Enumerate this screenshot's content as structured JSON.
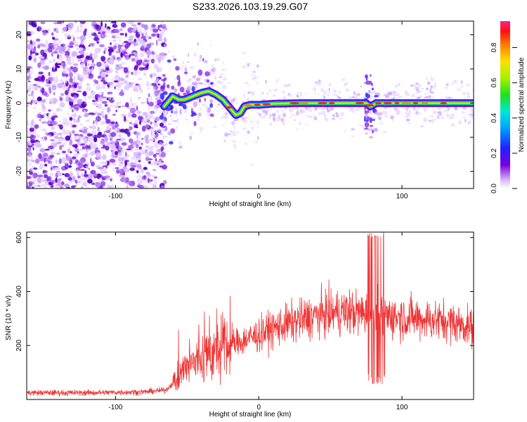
{
  "title": "S233.2026.103.19.29.G07",
  "chart_data": [
    {
      "type": "heatmap",
      "name": "spectrogram",
      "xlabel": "Height of straight line (km)",
      "ylabel": "Frequency (Hz)",
      "xlim": [
        -162,
        150
      ],
      "ylim": [
        -25,
        24
      ],
      "xticks": [
        -100,
        0,
        100
      ],
      "xtick_labels": [
        "-100",
        "0",
        "100"
      ],
      "yticks": [
        -20,
        -10,
        0,
        10,
        20
      ],
      "ytick_labels": [
        "-20",
        "-10",
        "0",
        "10",
        "20"
      ],
      "noise_region_x": [
        -162,
        -65
      ],
      "signal_track": {
        "x": [
          -66,
          -60,
          -56,
          -52,
          -46,
          -40,
          -35,
          -30,
          -25,
          -20,
          -16,
          -13,
          -10,
          -6,
          0,
          10,
          30,
          60,
          75,
          78,
          82,
          90,
          110,
          130,
          150
        ],
        "freq": [
          -1,
          2,
          1,
          1,
          2,
          3,
          3.5,
          2.5,
          1,
          -1.5,
          -3.5,
          -3,
          -1,
          -0.5,
          -0.5,
          -0.2,
          0,
          0,
          0,
          -1,
          0,
          0,
          0,
          0,
          0
        ]
      },
      "colorbar": {
        "label": "Normalized spectral amplitude",
        "range": [
          0,
          0.95
        ],
        "ticks": [
          0.0,
          0.2,
          0.4,
          0.6,
          0.8
        ],
        "tick_labels": [
          "0.0",
          "0.2",
          "0.4",
          "0.6",
          "0.8"
        ]
      }
    },
    {
      "type": "line",
      "name": "snr",
      "xlabel": "Height of straight line (km)",
      "ylabel": "SNR (10 * v/v)",
      "xlim": [
        -162,
        150
      ],
      "ylim": [
        0,
        620
      ],
      "xticks": [
        -100,
        0,
        100
      ],
      "xtick_labels": [
        "-100",
        "0",
        "100"
      ],
      "yticks": [
        200,
        400,
        600
      ],
      "ytick_labels": [
        "200",
        "400",
        "600"
      ],
      "series": [
        {
          "name": "SNR",
          "color": "#ee3333",
          "envelope_x": [
            -162,
            -120,
            -80,
            -65,
            -56,
            -50,
            -40,
            -30,
            -20,
            -10,
            0,
            10,
            20,
            30,
            40,
            50,
            60,
            70,
            80,
            90,
            100,
            110,
            120,
            130,
            140,
            150
          ],
          "envelope_mean": [
            25,
            25,
            28,
            35,
            80,
            120,
            155,
            175,
            200,
            220,
            240,
            262,
            280,
            295,
            310,
            320,
            325,
            320,
            315,
            310,
            305,
            300,
            295,
            290,
            280,
            265
          ]
        }
      ]
    }
  ],
  "colors": {
    "frame": "#000000",
    "snr_line": "#ee3333",
    "noise_purple": "#6a00d0"
  }
}
